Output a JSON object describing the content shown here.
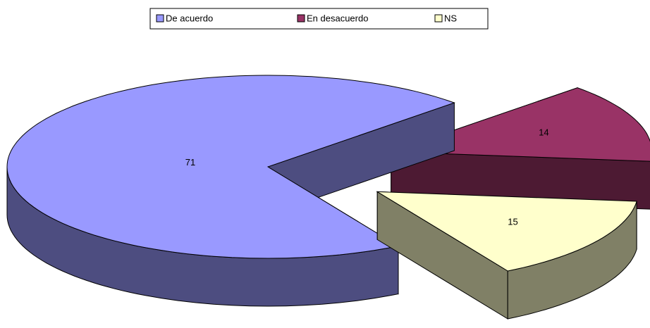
{
  "chart_data": {
    "type": "pie",
    "categories": [
      "De acuerdo",
      "En desacuerdo",
      "NS"
    ],
    "values": [
      71,
      14,
      15
    ],
    "colors": [
      "#9999ff",
      "#993366",
      "#ffffcc"
    ],
    "legend": "top"
  }
}
